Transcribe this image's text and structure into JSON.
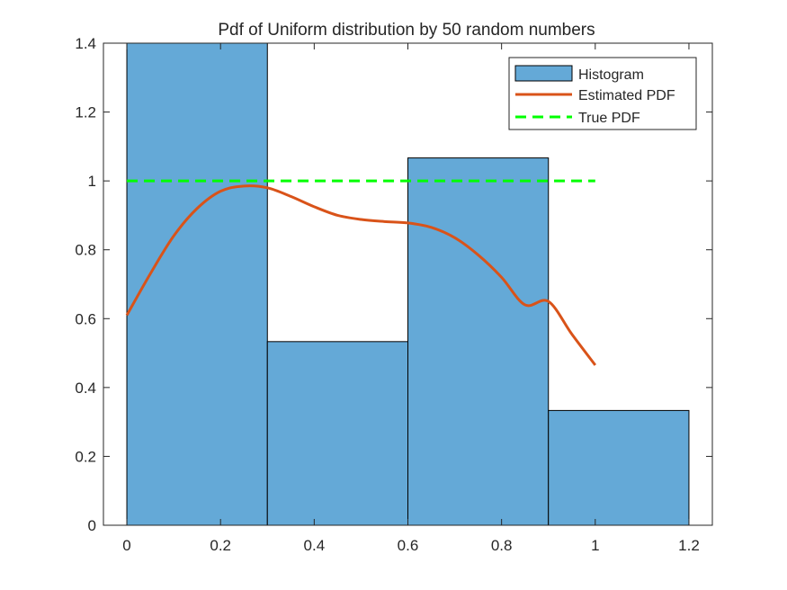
{
  "chart_data": {
    "type": "bar",
    "title": "Pdf of Uniform distribution by 50 random numbers",
    "xlabel": "",
    "ylabel": "",
    "xlim": [
      -0.05,
      1.25
    ],
    "ylim": [
      0,
      1.4
    ],
    "x_ticks": [
      0,
      0.2,
      0.4,
      0.6,
      0.8,
      1,
      1.2
    ],
    "x_tick_labels": [
      "0",
      "0.2",
      "0.4",
      "0.6",
      "0.8",
      "1",
      "1.2"
    ],
    "y_ticks": [
      0,
      0.2,
      0.4,
      0.6,
      0.8,
      1,
      1.2,
      1.4
    ],
    "y_tick_labels": [
      "0",
      "0.2",
      "0.4",
      "0.6",
      "0.8",
      "1",
      "1.2",
      "1.4"
    ],
    "grid": false,
    "legend_position": "top-right",
    "histogram": {
      "name": "Histogram",
      "bin_edges": [
        0,
        0.3,
        0.6,
        0.9,
        1.2
      ],
      "values": [
        1.4667,
        0.5333,
        1.0667,
        0.3333
      ],
      "color": "#64a9d7"
    },
    "series": [
      {
        "name": "Estimated PDF",
        "style": "solid",
        "color": "#d95319",
        "x": [
          0,
          0.05,
          0.1,
          0.15,
          0.2,
          0.25,
          0.3,
          0.35,
          0.4,
          0.45,
          0.5,
          0.55,
          0.6,
          0.65,
          0.7,
          0.75,
          0.8,
          0.85,
          0.9,
          0.95,
          1.0
        ],
        "y": [
          0.61,
          0.73,
          0.84,
          0.92,
          0.97,
          0.985,
          0.98,
          0.955,
          0.925,
          0.9,
          0.888,
          0.882,
          0.878,
          0.865,
          0.835,
          0.785,
          0.72,
          0.64,
          0.65,
          0.555,
          0.465
        ]
      },
      {
        "name": "True PDF",
        "style": "dashed",
        "color": "#00ff00",
        "x": [
          0,
          1
        ],
        "y": [
          1,
          1
        ]
      }
    ]
  }
}
